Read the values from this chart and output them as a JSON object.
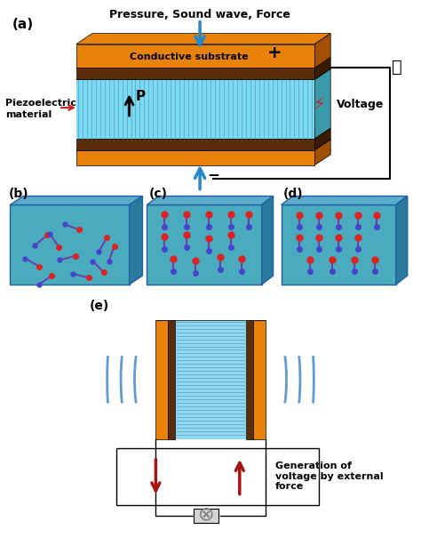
{
  "bg_color": "#ffffff",
  "orange_color": "#E8820A",
  "brown_color": "#5C2D0A",
  "cyan_color": "#5CC8D8",
  "cyan_light": "#A8E8F0",
  "cyan_lines": "#7ADAF0",
  "red_color": "#CC2222",
  "dark_red": "#8B0000",
  "blue_arrow": "#2288CC",
  "label_a": "(a)",
  "label_b": "(b)",
  "label_c": "(c)",
  "label_d": "(d)",
  "label_e": "(e)",
  "title_a": "Pressure, Sound wave, Force",
  "text_conductive": "Conductive substrate",
  "text_piezo1": "Piezoelectric",
  "text_piezo2": "material",
  "text_voltage": "Voltage",
  "text_gen": "Generation of\nvoltage by external\nforce",
  "plus_sign": "+",
  "minus_sign": "−"
}
